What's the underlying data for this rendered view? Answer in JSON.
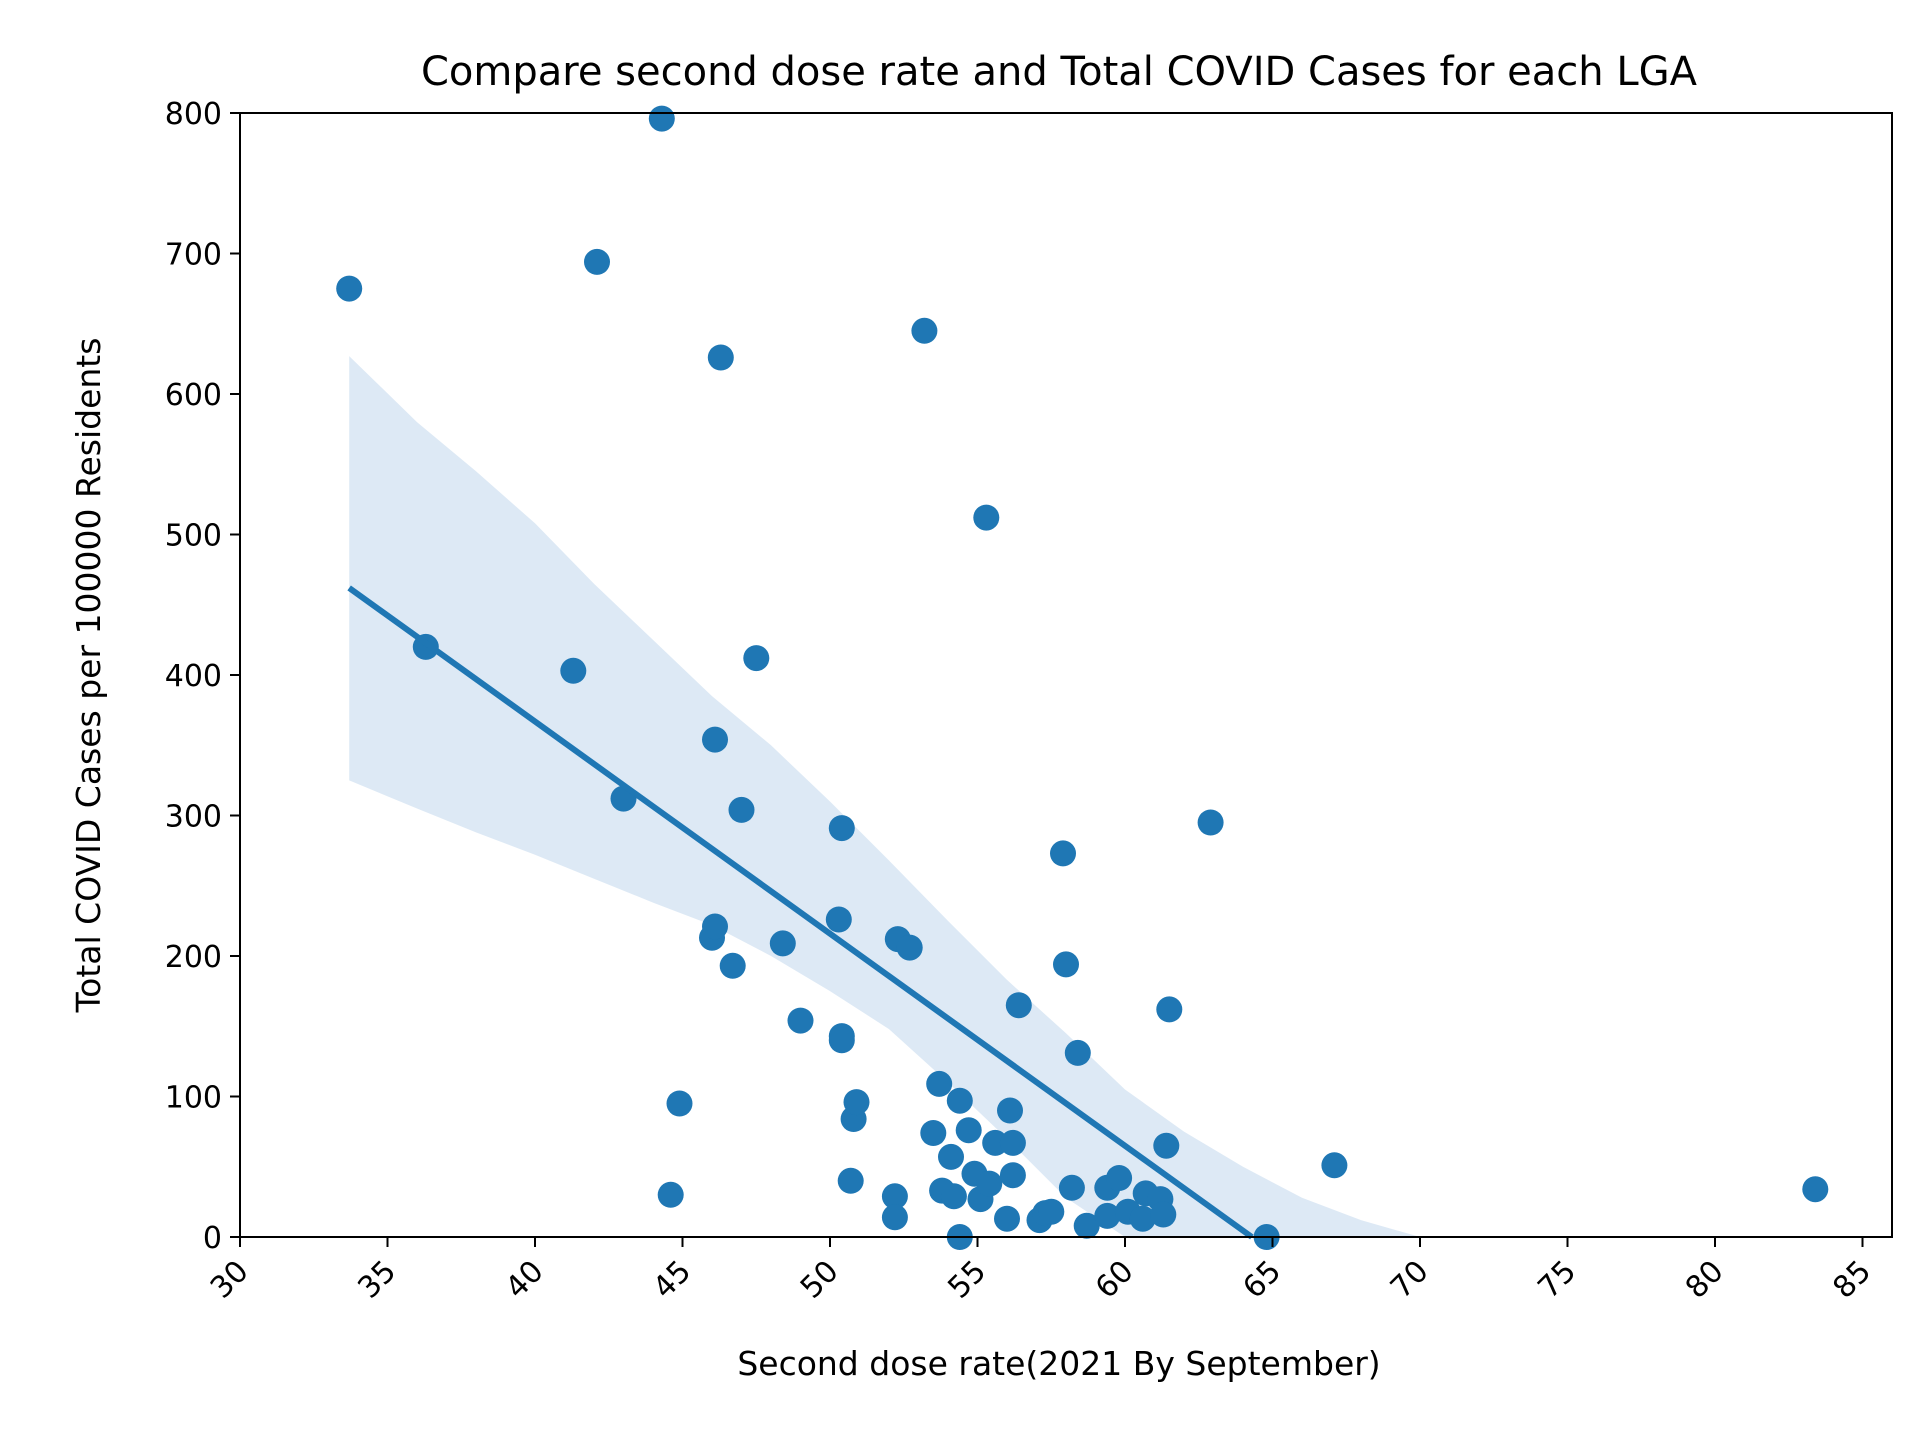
{
  "chart_data": {
    "type": "scatter",
    "title": "Compare second dose rate and Total COVID Cases for each LGA",
    "xlabel": "Second dose rate(2021 By September)",
    "ylabel": "Total COVID Cases per 100000 Residents",
    "xlim": [
      30,
      86
    ],
    "ylim": [
      0,
      800
    ],
    "xticks": [
      "30",
      "35",
      "40",
      "45",
      "50",
      "55",
      "60",
      "65",
      "70",
      "75",
      "80",
      "85"
    ],
    "yticks": [
      "0",
      "100",
      "200",
      "300",
      "400",
      "500",
      "600",
      "700",
      "800"
    ],
    "grid": false,
    "legend": "none",
    "colors": {
      "points": "#1f77b4",
      "line": "#1f77b4",
      "band": "#c6dbef"
    },
    "points": [
      [
        33.7,
        675
      ],
      [
        36.3,
        420
      ],
      [
        41.3,
        403
      ],
      [
        42.1,
        694
      ],
      [
        43.0,
        312
      ],
      [
        44.3,
        796
      ],
      [
        44.6,
        30
      ],
      [
        44.9,
        95
      ],
      [
        46.0,
        213
      ],
      [
        46.1,
        221
      ],
      [
        46.1,
        354
      ],
      [
        46.3,
        626
      ],
      [
        46.7,
        193
      ],
      [
        47.0,
        304
      ],
      [
        47.5,
        412
      ],
      [
        48.4,
        209
      ],
      [
        49.0,
        154
      ],
      [
        50.3,
        226
      ],
      [
        50.4,
        291
      ],
      [
        50.4,
        143
      ],
      [
        50.4,
        140
      ],
      [
        50.7,
        40
      ],
      [
        50.8,
        84
      ],
      [
        50.9,
        96
      ],
      [
        52.2,
        29
      ],
      [
        52.2,
        14
      ],
      [
        52.3,
        212
      ],
      [
        52.7,
        206
      ],
      [
        53.2,
        645
      ],
      [
        53.5,
        74
      ],
      [
        53.7,
        109
      ],
      [
        53.8,
        33
      ],
      [
        54.1,
        57
      ],
      [
        54.2,
        29
      ],
      [
        54.4,
        0
      ],
      [
        54.4,
        97
      ],
      [
        54.7,
        76
      ],
      [
        54.9,
        45
      ],
      [
        55.1,
        27
      ],
      [
        55.3,
        512
      ],
      [
        55.4,
        38
      ],
      [
        55.6,
        67
      ],
      [
        56.0,
        13
      ],
      [
        56.1,
        90
      ],
      [
        56.2,
        67
      ],
      [
        56.2,
        44
      ],
      [
        56.4,
        165
      ],
      [
        57.1,
        12
      ],
      [
        57.3,
        17
      ],
      [
        57.5,
        18
      ],
      [
        57.9,
        273
      ],
      [
        58.0,
        194
      ],
      [
        58.2,
        35
      ],
      [
        58.4,
        131
      ],
      [
        58.7,
        8
      ],
      [
        59.4,
        15
      ],
      [
        59.4,
        35
      ],
      [
        59.8,
        42
      ],
      [
        60.1,
        18
      ],
      [
        60.6,
        13
      ],
      [
        60.7,
        31
      ],
      [
        61.2,
        27
      ],
      [
        61.3,
        16
      ],
      [
        61.4,
        65
      ],
      [
        61.5,
        162
      ],
      [
        62.9,
        295
      ],
      [
        64.8,
        0
      ],
      [
        67.1,
        51
      ],
      [
        83.4,
        34
      ]
    ],
    "regression": {
      "x": [
        33.7,
        64.3
      ],
      "y": [
        462,
        0
      ]
    },
    "confidence_band": {
      "x": [
        33.7,
        36,
        38,
        40,
        42,
        44,
        46,
        48,
        50,
        52,
        54,
        56,
        58,
        60,
        62,
        64,
        66,
        68,
        70
      ],
      "upper": [
        627,
        580,
        545,
        508,
        465,
        425,
        385,
        350,
        310,
        268,
        225,
        183,
        145,
        105,
        75,
        50,
        28,
        12,
        0
      ],
      "lower": [
        325,
        305,
        288,
        272,
        255,
        238,
        222,
        200,
        175,
        148,
        110,
        70,
        28,
        0,
        0,
        0,
        0,
        0,
        0
      ]
    }
  }
}
